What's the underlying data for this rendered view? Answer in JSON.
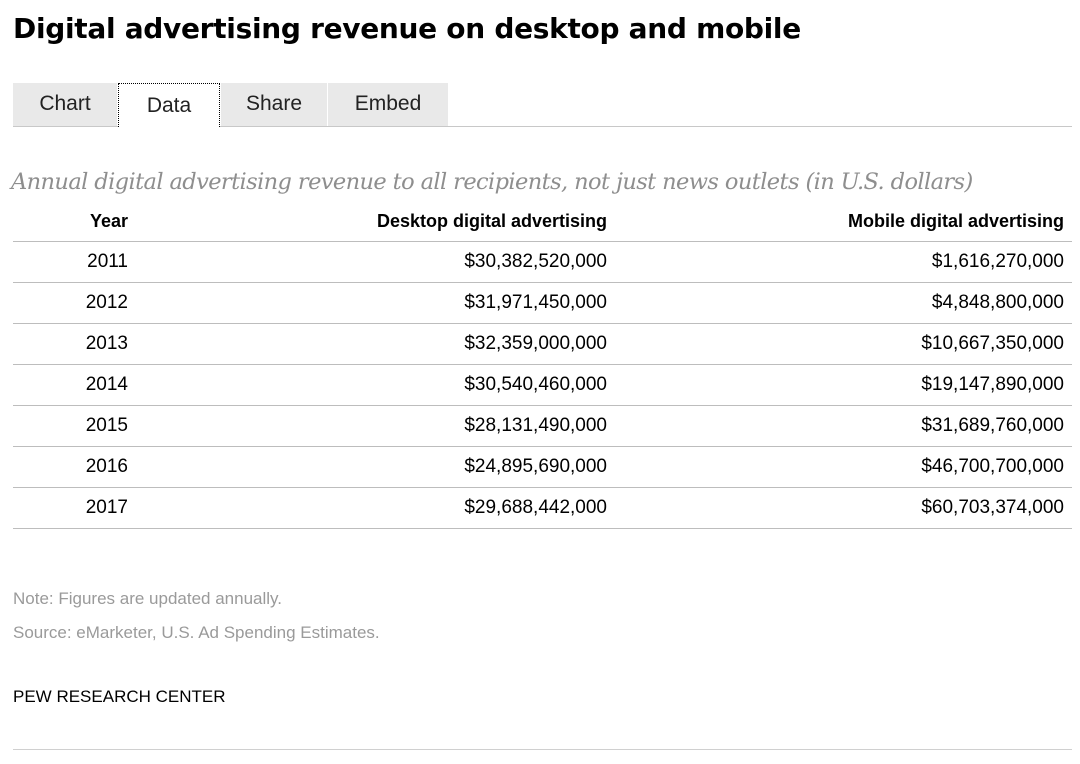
{
  "title": "Digital advertising revenue on desktop and mobile",
  "tabs": [
    {
      "label": "Chart",
      "active": false
    },
    {
      "label": "Data",
      "active": true
    },
    {
      "label": "Share",
      "active": false
    },
    {
      "label": "Embed",
      "active": false
    }
  ],
  "subtitle": "Annual digital advertising revenue to all recipients, not just news outlets (in U.S. dollars)",
  "table": {
    "headers": [
      "Year",
      "Desktop digital advertising",
      "Mobile digital advertising"
    ],
    "rows": [
      [
        "2011",
        "$30,382,520,000",
        "$1,616,270,000"
      ],
      [
        "2012",
        "$31,971,450,000",
        "$4,848,800,000"
      ],
      [
        "2013",
        "$32,359,000,000",
        "$10,667,350,000"
      ],
      [
        "2014",
        "$30,540,460,000",
        "$19,147,890,000"
      ],
      [
        "2015",
        "$28,131,490,000",
        "$31,689,760,000"
      ],
      [
        "2016",
        "$24,895,690,000",
        "$46,700,700,000"
      ],
      [
        "2017",
        "$29,688,442,000",
        "$60,703,374,000"
      ]
    ]
  },
  "note": "Note: Figures are updated annually.",
  "source": "Source: eMarketer, U.S. Ad Spending Estimates.",
  "organization": "PEW RESEARCH CENTER",
  "colors": {
    "tab_background": "#e9e9e9",
    "subtitle": "#8e8e8e",
    "footnote": "#9a9a9a",
    "rule": "#bdbdbd"
  }
}
